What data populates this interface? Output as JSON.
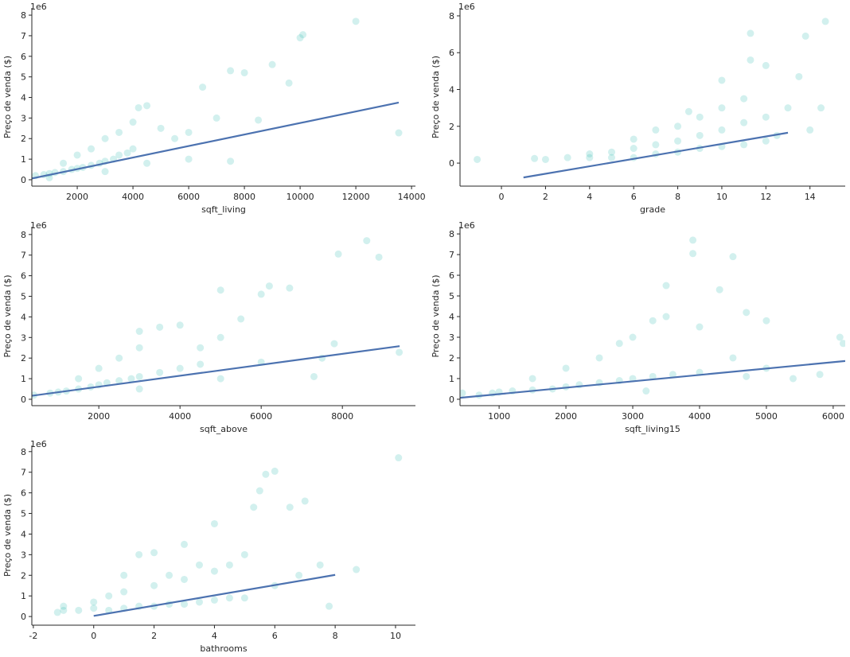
{
  "chart_data": [
    {
      "type": "scatter",
      "x_label": "sqft_living",
      "y_label": "Preço de venda ($)",
      "offset_label": "1e6",
      "xlim": [
        370,
        14140
      ],
      "ylim": [
        -0.31,
        8.35
      ],
      "xticks": [
        2000,
        4000,
        6000,
        8000,
        10000,
        12000,
        14000
      ],
      "yticks": [
        0,
        1,
        2,
        3,
        4,
        5,
        6,
        7,
        8
      ],
      "alpha": 0.2,
      "scatter": {
        "color": "#20b2aa",
        "x": [
          500,
          800,
          1000,
          1200,
          1500,
          1800,
          2000,
          2200,
          2500,
          2800,
          3000,
          3300,
          3500,
          3800,
          4000,
          1500,
          2000,
          2500,
          3000,
          3500,
          4000,
          4200,
          4500,
          5000,
          5500,
          6000,
          6500,
          7000,
          7500,
          8000,
          7500,
          9000,
          9600,
          10000,
          10100,
          12000,
          13540,
          6000,
          4500,
          8500,
          1000,
          3000
        ],
        "values": [
          0.2,
          0.25,
          0.3,
          0.35,
          0.4,
          0.5,
          0.55,
          0.6,
          0.7,
          0.8,
          0.9,
          1.0,
          1.2,
          1.3,
          1.5,
          0.8,
          1.2,
          1.5,
          2.0,
          2.3,
          2.8,
          3.5,
          3.6,
          2.5,
          2.0,
          2.3,
          4.5,
          3.0,
          5.3,
          5.2,
          0.9,
          5.6,
          4.7,
          6.9,
          7.05,
          7.7,
          2.28,
          1.0,
          0.8,
          2.9,
          0.1,
          0.4
        ]
      },
      "fit": {
        "color": "#4c72b0",
        "x": [
          370,
          13540
        ],
        "values": [
          0.06,
          3.75
        ]
      }
    },
    {
      "type": "scatter",
      "x_label": "grade",
      "y_label": "Preço de venda ($)",
      "offset_label": "1e6",
      "xlim": [
        -1.88,
        15.6
      ],
      "ylim": [
        -1.25,
        8.43
      ],
      "xticks": [
        0,
        2,
        4,
        6,
        8,
        10,
        12,
        14
      ],
      "yticks": [
        0,
        2,
        4,
        6,
        8
      ],
      "alpha": 0.2,
      "scatter": {
        "color": "#20b2aa",
        "x": [
          -1.1,
          1.5,
          2,
          3,
          4,
          4,
          5,
          5,
          6,
          6,
          6,
          7,
          7,
          7,
          8,
          8,
          8,
          8.5,
          9,
          9,
          9,
          10,
          10,
          10,
          10,
          11,
          11,
          11,
          11.3,
          11.3,
          12,
          12,
          12,
          12.5,
          13,
          13.5,
          13.8,
          14.7,
          14,
          14.5
        ],
        "values": [
          0.2,
          0.25,
          0.2,
          0.3,
          0.3,
          0.5,
          0.3,
          0.6,
          0.3,
          0.8,
          1.3,
          0.5,
          1.0,
          1.8,
          0.6,
          1.2,
          2.0,
          2.8,
          0.8,
          1.5,
          2.5,
          0.9,
          1.8,
          3.0,
          4.5,
          1.0,
          2.2,
          3.5,
          5.6,
          7.05,
          1.2,
          2.5,
          5.3,
          1.5,
          3.0,
          4.7,
          6.9,
          7.7,
          1.8,
          3.0
        ]
      },
      "fit": {
        "color": "#4c72b0",
        "x": [
          1,
          13
        ],
        "values": [
          -0.78,
          1.65
        ]
      }
    },
    {
      "type": "scatter",
      "x_label": "sqft_above",
      "y_label": "Preço de venda ($)",
      "offset_label": "1e6",
      "xlim": [
        350,
        9800
      ],
      "ylim": [
        -0.31,
        8.38
      ],
      "xticks": [
        2000,
        4000,
        6000,
        8000
      ],
      "yticks": [
        0,
        1,
        2,
        3,
        4,
        5,
        6,
        7,
        8
      ],
      "alpha": 0.2,
      "scatter": {
        "color": "#20b2aa",
        "x": [
          400,
          800,
          1000,
          1200,
          1500,
          1800,
          2000,
          2200,
          2500,
          2800,
          3000,
          3500,
          4000,
          4500,
          2000,
          2500,
          3000,
          3000,
          3500,
          4000,
          4500,
          5000,
          5000,
          5500,
          6000,
          6200,
          6700,
          6000,
          7300,
          7500,
          7800,
          7900,
          8600,
          8900,
          9400,
          1500,
          3000,
          5000
        ],
        "values": [
          0.2,
          0.3,
          0.35,
          0.4,
          0.5,
          0.6,
          0.7,
          0.8,
          0.9,
          1.0,
          1.1,
          1.3,
          1.5,
          1.7,
          1.5,
          2.0,
          2.5,
          3.3,
          3.5,
          3.6,
          2.5,
          3.0,
          5.3,
          3.9,
          5.1,
          5.5,
          5.4,
          1.8,
          1.1,
          2.0,
          2.7,
          7.05,
          7.7,
          6.9,
          2.28,
          1.0,
          0.5,
          1.0
        ]
      },
      "fit": {
        "color": "#4c72b0",
        "x": [
          350,
          9410
        ],
        "values": [
          0.17,
          2.58
        ]
      }
    },
    {
      "type": "scatter",
      "x_label": "sqft_living15",
      "y_label": "Preço de venda ($)",
      "offset_label": "1e6",
      "xlim": [
        415,
        6180
      ],
      "ylim": [
        -0.31,
        8.35
      ],
      "xticks": [
        1000,
        2000,
        3000,
        4000,
        5000,
        6000
      ],
      "yticks": [
        0,
        1,
        2,
        3,
        4,
        5,
        6,
        7,
        8
      ],
      "alpha": 0.2,
      "scatter": {
        "color": "#20b2aa",
        "x": [
          450,
          700,
          900,
          1000,
          1200,
          1500,
          1800,
          2000,
          2200,
          2500,
          2800,
          3000,
          3300,
          3600,
          4000,
          1500,
          2000,
          2500,
          2800,
          3000,
          3300,
          3500,
          3500,
          3900,
          3900,
          4000,
          4300,
          4500,
          4500,
          4700,
          5000,
          5000,
          5400,
          5800,
          6100,
          6150,
          4700,
          3200
        ],
        "values": [
          0.3,
          0.2,
          0.3,
          0.35,
          0.4,
          0.45,
          0.5,
          0.6,
          0.7,
          0.8,
          0.9,
          1.0,
          1.1,
          1.2,
          1.3,
          1.0,
          1.5,
          2.0,
          2.7,
          3.0,
          3.8,
          4.0,
          5.5,
          7.7,
          7.05,
          3.5,
          5.3,
          6.9,
          2.0,
          4.2,
          3.8,
          1.5,
          1.0,
          1.2,
          3.0,
          2.7,
          1.1,
          0.4
        ]
      },
      "fit": {
        "color": "#4c72b0",
        "x": [
          415,
          6180
        ],
        "values": [
          0.07,
          1.85
        ]
      }
    },
    {
      "type": "scatter",
      "x_label": "bathrooms",
      "y_label": "Preço de venda ($)",
      "offset_label": "1e6",
      "xlim": [
        -2.05,
        10.66
      ],
      "ylim": [
        -0.42,
        8.3
      ],
      "xticks": [
        -2,
        0,
        2,
        4,
        6,
        8,
        10
      ],
      "yticks": [
        0,
        1,
        2,
        3,
        4,
        5,
        6,
        7,
        8
      ],
      "alpha": 0.2,
      "scatter": {
        "color": "#20b2aa",
        "x": [
          -1.2,
          -1,
          -1,
          -0.5,
          0,
          0,
          0.5,
          0.5,
          1,
          1,
          1,
          1.5,
          1.5,
          2,
          2,
          2,
          2.5,
          2.5,
          3,
          3,
          3,
          3.5,
          3.5,
          4,
          4,
          4,
          4.5,
          4.5,
          5,
          5,
          5.3,
          5.5,
          5.7,
          6,
          6,
          6.5,
          6.8,
          7,
          7.5,
          7.8,
          8.7,
          10.1
        ],
        "values": [
          0.2,
          0.3,
          0.5,
          0.3,
          0.4,
          0.7,
          0.3,
          1.0,
          0.4,
          1.2,
          2.0,
          0.5,
          3.0,
          0.5,
          1.5,
          3.1,
          0.6,
          2.0,
          0.6,
          1.8,
          3.5,
          0.7,
          2.5,
          0.8,
          2.2,
          4.5,
          0.9,
          2.5,
          0.9,
          3.0,
          5.3,
          6.1,
          6.9,
          7.05,
          1.5,
          5.3,
          2.0,
          5.6,
          2.5,
          0.5,
          2.28,
          7.7
        ]
      },
      "fit": {
        "color": "#4c72b0",
        "x": [
          0,
          8
        ],
        "values": [
          0.03,
          2.02
        ]
      }
    }
  ]
}
